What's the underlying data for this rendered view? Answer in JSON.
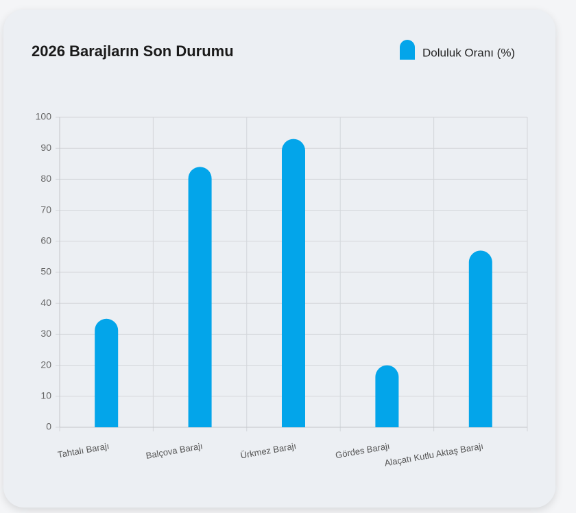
{
  "chart_data": {
    "type": "bar",
    "title": "2026 Barajların Son Durumu",
    "categories": [
      "Tahtalı Barajı",
      "Balçova Barajı",
      "Ürkmez Barajı",
      "Gördes Barajı",
      "Alaçatı Kutlu Aktaş Barajı"
    ],
    "series": [
      {
        "name": "Doluluk Oranı (%)",
        "color": "#03a5ea",
        "values": [
          35,
          84,
          93,
          20,
          57
        ]
      }
    ],
    "ylim": [
      0,
      100
    ],
    "yticks": [
      0,
      10,
      20,
      30,
      40,
      50,
      60,
      70,
      80,
      90,
      100
    ],
    "grid": true,
    "legend": "top-right"
  }
}
